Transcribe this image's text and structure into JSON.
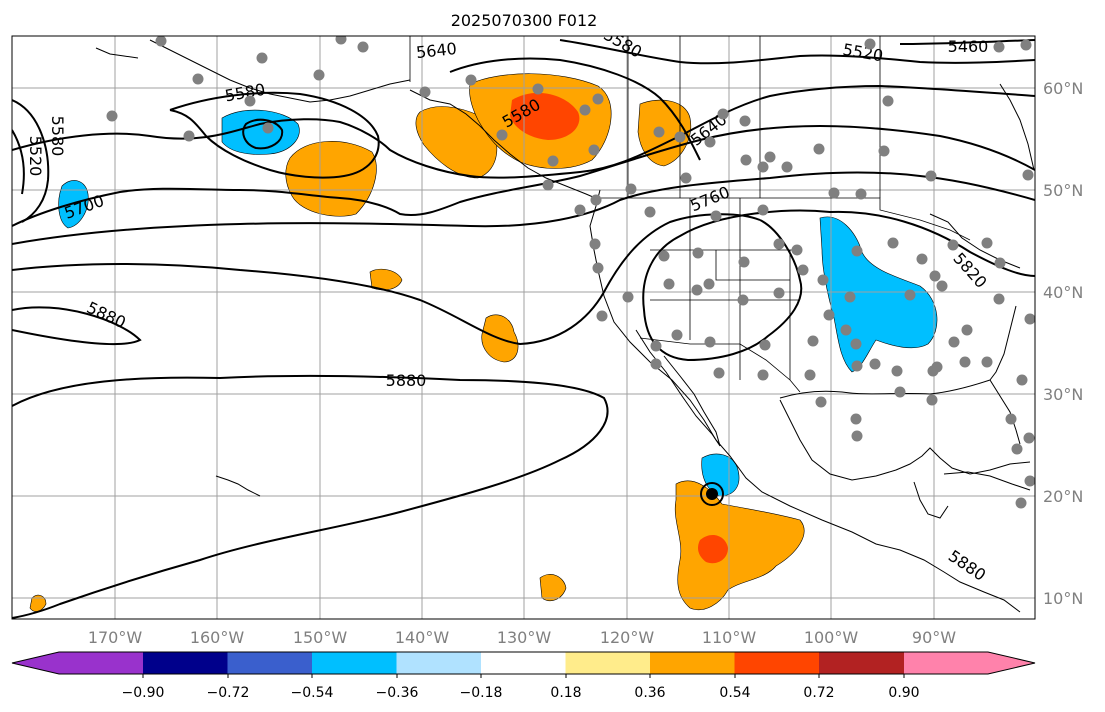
{
  "title": "2025070300 F012",
  "map": {
    "longitude_labels": [
      "170°W",
      "160°W",
      "150°W",
      "140°W",
      "130°W",
      "120°W",
      "110°W",
      "100°W",
      "90°W"
    ],
    "latitude_labels": [
      "60°N",
      "50°N",
      "40°N",
      "30°N",
      "20°N",
      "10°N"
    ],
    "contour_labels": [
      "5640",
      "5580",
      "5520",
      "5460",
      "5580",
      "5580",
      "5520",
      "5700",
      "5580",
      "5640",
      "5760",
      "5880",
      "5880",
      "5820",
      "5880"
    ],
    "colors": {
      "contour": "#000000",
      "coast": "#000000",
      "grid": "#a0a0a0",
      "station_dot": "#808080"
    }
  },
  "colorbar": {
    "tick_labels": [
      "−0.90",
      "−0.72",
      "−0.54",
      "−0.36",
      "−0.18",
      "0.18",
      "0.36",
      "0.54",
      "0.72",
      "0.90"
    ],
    "bins": [
      {
        "color": "#9932cc"
      },
      {
        "color": "#00008b"
      },
      {
        "color": "#3a5fcd"
      },
      {
        "color": "#00bfff"
      },
      {
        "color": "#b0e2ff"
      },
      {
        "color": "#ffffff"
      },
      {
        "color": "#ffec8b"
      },
      {
        "color": "#ffa500"
      },
      {
        "color": "#ff4500"
      },
      {
        "color": "#b22222"
      },
      {
        "color": "#ff82ab"
      }
    ]
  }
}
